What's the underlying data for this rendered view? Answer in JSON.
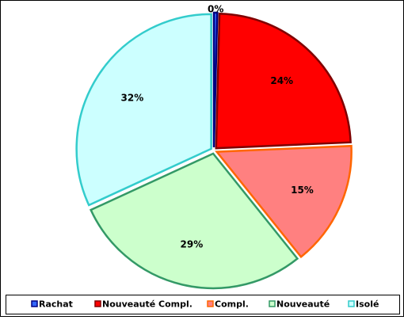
{
  "chart_data": {
    "type": "pie",
    "categories": [
      "Rachat",
      "Nouveauté Compl.",
      "Compl.",
      "Nouveauté",
      "Isolé"
    ],
    "values": [
      0.4,
      24,
      15,
      29,
      32
    ],
    "value_labels": [
      "0%",
      "24%",
      "15%",
      "29%",
      "32%"
    ],
    "colors": [
      "#3366ff",
      "#ff0000",
      "#ff8080",
      "#ccffcc",
      "#ccffff"
    ],
    "edge_colors": [
      "#000080",
      "#800000",
      "#ff6600",
      "#339966",
      "#33cccc"
    ],
    "legend": "bottom"
  }
}
